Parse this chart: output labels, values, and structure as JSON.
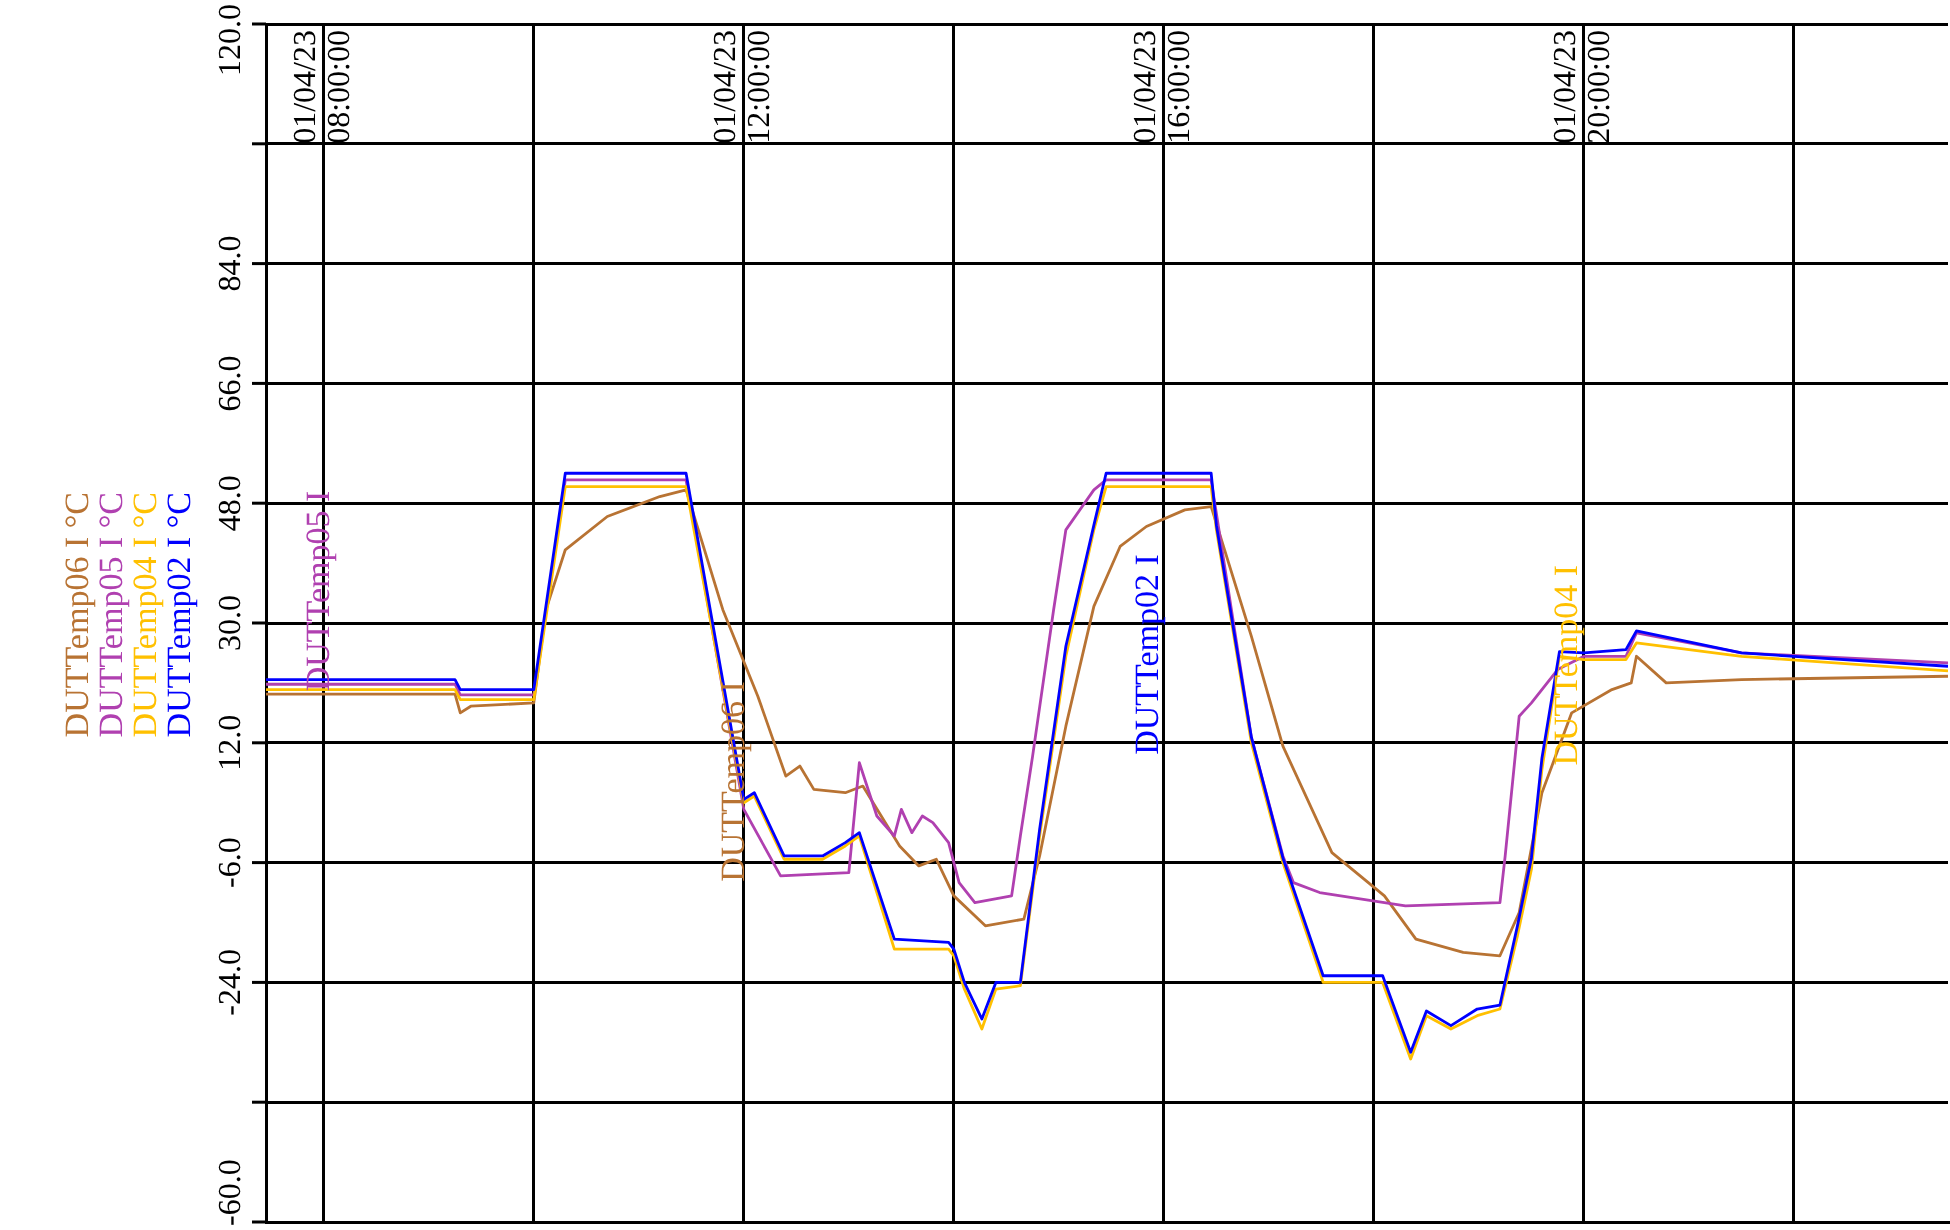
{
  "chart_data": {
    "type": "line",
    "legend": "left",
    "grid": true,
    "marker": "none",
    "line_style": "solid",
    "xlim": [
      "--04-01T07:27",
      "--04-01T23:28"
    ],
    "xticks": [
      {
        "value": "--04-01T08:00",
        "label": "01/04/23 08:00:00"
      },
      {
        "value": "--04-01T10:00",
        "label": null
      },
      {
        "value": "--04-01T12:00",
        "label": "01/04/23 12:00:00"
      },
      {
        "value": "--04-01T14:00",
        "label": null
      },
      {
        "value": "--04-01T16:00",
        "label": "01/04/23 16:00:00"
      },
      {
        "value": "--04-01T18:00",
        "label": null
      },
      {
        "value": "--04-01T20:00",
        "label": "01/04/23 20:00:00"
      },
      {
        "value": "--04-01T22:00",
        "label": null
      }
    ],
    "ylim": [
      -60,
      120
    ],
    "yticks": [
      {
        "value": -60,
        "label": "-60.0"
      },
      {
        "value": -42,
        "label": null
      },
      {
        "value": -24,
        "label": "-24.0"
      },
      {
        "value": -6,
        "label": "-6.0"
      },
      {
        "value": 12,
        "label": "12.0"
      },
      {
        "value": 30,
        "label": "30.0"
      },
      {
        "value": 48,
        "label": "48.0"
      },
      {
        "value": 66,
        "label": "66.0"
      },
      {
        "value": 84,
        "label": "84.0"
      },
      {
        "value": 102,
        "label": null
      },
      {
        "value": 120,
        "label": "120.0"
      }
    ],
    "series": [
      {
        "name": "DUTTemp06 I °C",
        "color": "#b87333",
        "x": [
          "--04-01T07:27",
          "--04-01T09:15",
          "--04-01T09:18",
          "--04-01T09:24",
          "--04-01T10:00",
          "--04-01T10:07",
          "--04-01T10:18",
          "--04-01T10:42",
          "--04-01T11:12",
          "--04-01T11:27",
          "--04-01T11:48",
          "--04-01T12:08",
          "--04-01T12:24",
          "--04-01T12:32",
          "--04-01T12:40",
          "--04-01T12:58",
          "--04-01T13:08",
          "--04-01T13:29",
          "--04-01T13:40",
          "--04-01T13:50",
          "--04-01T14:00",
          "--04-01T14:18",
          "--04-01T14:40",
          "--04-01T14:49",
          "--04-01T15:04",
          "--04-01T15:20",
          "--04-01T15:35",
          "--04-01T15:50",
          "--04-01T16:12",
          "--04-01T16:27",
          "--04-01T16:50",
          "--04-01T17:08",
          "--04-01T17:36",
          "--04-01T18:06",
          "--04-01T18:24",
          "--04-01T18:51",
          "--04-01T19:12",
          "--04-01T19:23",
          "--04-01T19:36",
          "--04-01T19:53",
          "--04-01T20:16",
          "--04-01T20:27",
          "--04-01T20:30",
          "--04-01T20:47",
          "--04-01T21:30",
          "--04-01T23:28"
        ],
        "values": [
          19.3,
          19.3,
          16.5,
          17.5,
          18,
          32,
          41,
          46,
          49,
          50,
          32,
          19,
          7,
          8.5,
          5,
          4.5,
          5.5,
          -3.5,
          -6.5,
          -5.5,
          -11,
          -15.5,
          -14.5,
          -5,
          14.5,
          32.5,
          41.5,
          44.5,
          47,
          47.5,
          28,
          11.5,
          -4.5,
          -11,
          -17.5,
          -19.5,
          -20,
          -13.5,
          4.5,
          16.5,
          20,
          21,
          25,
          21,
          21.5,
          22
        ]
      },
      {
        "name": "DUTTemp05 I °C",
        "color": "#b040b0",
        "x": [
          "--04-01T07:27",
          "--04-01T09:15",
          "--04-01T09:18",
          "--04-01T10:00",
          "--04-01T10:18",
          "--04-01T11:27",
          "--04-01T12:00",
          "--04-01T12:21",
          "--04-01T13:00",
          "--04-01T13:06",
          "--04-01T13:16",
          "--04-01T13:26",
          "--04-01T13:30",
          "--04-01T13:36",
          "--04-01T13:42",
          "--04-01T13:48",
          "--04-01T13:57",
          "--04-01T14:03",
          "--04-01T14:12",
          "--04-01T14:33",
          "--04-01T14:38",
          "--04-01T14:45",
          "--04-01T14:57",
          "--04-01T15:04",
          "--04-01T15:20",
          "--04-01T15:27",
          "--04-01T16:27",
          "--04-01T16:50",
          "--04-01T17:08",
          "--04-01T17:14",
          "--04-01T17:29",
          "--04-01T18:18",
          "--04-01T19:12",
          "--04-01T19:15",
          "--04-01T19:23",
          "--04-01T19:30",
          "--04-01T19:45",
          "--04-01T20:00",
          "--04-01T20:24",
          "--04-01T20:30",
          "--04-01T21:30",
          "--04-01T23:28"
        ],
        "values": [
          20.8,
          20.8,
          19.2,
          19.2,
          51.5,
          51.5,
          2,
          -8,
          -7.5,
          9,
          1,
          -2,
          2,
          -1.5,
          1,
          0,
          -3,
          -9,
          -12,
          -11,
          -2,
          10,
          32,
          44,
          50,
          51.5,
          51.5,
          12.8,
          -5,
          -9,
          -10.5,
          -12.5,
          -12,
          -5,
          16,
          18,
          23,
          25,
          25,
          28.5,
          25.5,
          24
        ]
      },
      {
        "name": "DUTTemp04 I °C",
        "color": "#ffc000",
        "x": [
          "--04-01T07:27",
          "--04-01T09:15",
          "--04-01T09:18",
          "--04-01T10:00",
          "--04-01T10:18",
          "--04-01T11:27",
          "--04-01T12:00",
          "--04-01T12:06",
          "--04-01T12:23",
          "--04-01T12:45",
          "--04-01T12:58",
          "--04-01T13:06",
          "--04-01T13:26",
          "--04-01T13:57",
          "--04-01T14:00",
          "--04-01T14:06",
          "--04-01T14:16",
          "--04-01T14:24",
          "--04-01T14:38",
          "--04-01T14:49",
          "--04-01T15:04",
          "--04-01T15:20",
          "--04-01T15:27",
          "--04-01T16:27",
          "--04-01T16:30",
          "--04-01T16:50",
          "--04-01T17:08",
          "--04-01T17:31",
          "--04-01T18:05",
          "--04-01T18:21",
          "--04-01T18:30",
          "--04-01T18:44",
          "--04-01T18:59",
          "--04-01T19:12",
          "--04-01T19:22",
          "--04-01T19:30",
          "--04-01T19:36",
          "--04-01T19:46",
          "--04-01T20:00",
          "--04-01T20:24",
          "--04-01T20:30",
          "--04-01T21:30",
          "--04-01T23:28"
        ],
        "values": [
          20,
          20,
          18.5,
          18.5,
          50.5,
          50.5,
          3,
          4,
          -5.5,
          -5.5,
          -3.5,
          -2,
          -19,
          -19,
          -20,
          -25,
          -31,
          -25,
          -24.5,
          -2,
          25,
          44,
          50.5,
          50.5,
          44,
          12,
          -6,
          -24,
          -24,
          -35.5,
          -29,
          -31,
          -29,
          -28,
          -17,
          -7,
          8,
          25,
          24.5,
          24.5,
          27,
          25,
          22.8
        ]
      },
      {
        "name": "DUTTemp02 I °C",
        "color": "#0000ff",
        "x": [
          "--04-01T07:27",
          "--04-01T09:15",
          "--04-01T09:18",
          "--04-01T10:00",
          "--04-01T10:18",
          "--04-01T11:27",
          "--04-01T12:00",
          "--04-01T12:06",
          "--04-01T12:23",
          "--04-01T12:45",
          "--04-01T12:58",
          "--04-01T13:06",
          "--04-01T13:26",
          "--04-01T13:57",
          "--04-01T14:00",
          "--04-01T14:06",
          "--04-01T14:16",
          "--04-01T14:24",
          "--04-01T14:38",
          "--04-01T14:49",
          "--04-01T15:04",
          "--04-01T15:20",
          "--04-01T15:27",
          "--04-01T16:27",
          "--04-01T16:30",
          "--04-01T16:50",
          "--04-01T17:08",
          "--04-01T17:31",
          "--04-01T18:05",
          "--04-01T18:21",
          "--04-01T18:30",
          "--04-01T18:44",
          "--04-01T18:59",
          "--04-01T19:12",
          "--04-01T19:22",
          "--04-01T19:30",
          "--04-01T19:36",
          "--04-01T19:46",
          "--04-01T20:00",
          "--04-01T20:24",
          "--04-01T20:30",
          "--04-01T21:30",
          "--04-01T23:28"
        ],
        "values": [
          21.5,
          21.5,
          20,
          20,
          52.5,
          52.5,
          3.5,
          4.5,
          -5,
          -5,
          -3,
          -1.5,
          -17.5,
          -18,
          -19,
          -24,
          -29.5,
          -24,
          -24,
          -1,
          26.5,
          44.7,
          52.5,
          52.5,
          44.7,
          12.8,
          -5.3,
          -23,
          -23,
          -34.5,
          -28.3,
          -30.5,
          -28,
          -27.4,
          -15.5,
          -5.3,
          9.7,
          25.7,
          25.5,
          26,
          28.8,
          25.5,
          23.5
        ]
      }
    ],
    "annotations": [
      "DUTTemp06 I",
      "DUTTemp05 I",
      "DUTTemp04 I",
      "DUTTemp02 I"
    ]
  }
}
